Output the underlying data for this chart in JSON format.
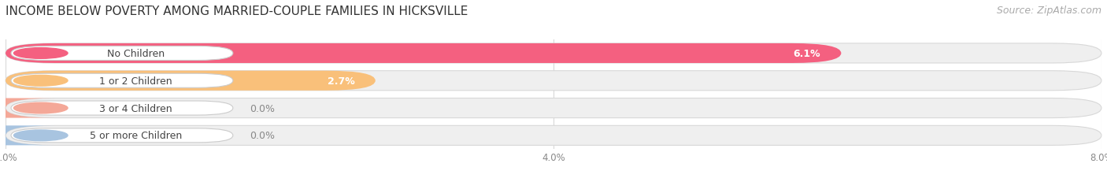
{
  "title": "INCOME BELOW POVERTY AMONG MARRIED-COUPLE FAMILIES IN HICKSVILLE",
  "source": "Source: ZipAtlas.com",
  "categories": [
    "No Children",
    "1 or 2 Children",
    "3 or 4 Children",
    "5 or more Children"
  ],
  "values": [
    6.1,
    2.7,
    0.0,
    0.0
  ],
  "bar_colors": [
    "#f46080",
    "#f9c07a",
    "#f4a898",
    "#a8c4e0"
  ],
  "track_color": "#efefef",
  "track_edge_color": "#d8d8d8",
  "label_bg_color": "#ffffff",
  "label_edge_color": "#cccccc",
  "xlim_max": 8.0,
  "xticks": [
    0.0,
    4.0,
    8.0
  ],
  "xticklabels": [
    "0.0%",
    "4.0%",
    "8.0%"
  ],
  "title_fontsize": 11,
  "source_fontsize": 9,
  "label_fontsize": 9,
  "value_fontsize": 9,
  "background_color": "#ffffff",
  "grid_color": "#d8d8d8",
  "value_inside_color": "#ffffff",
  "value_outside_color": "#888888"
}
